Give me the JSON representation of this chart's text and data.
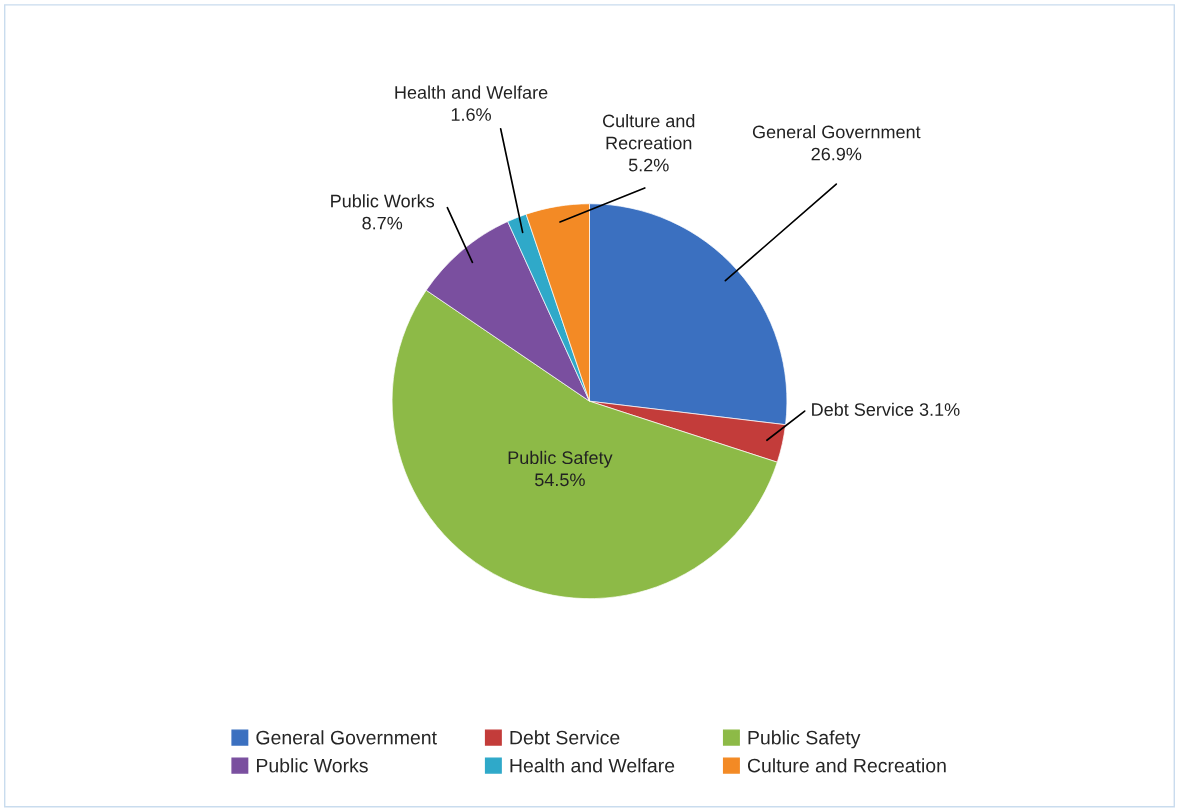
{
  "chart_data": {
    "type": "pie",
    "categories": [
      "General Government",
      "Debt Service",
      "Public Safety",
      "Public Works",
      "Health and Welfare",
      "Culture and Recreation"
    ],
    "values": [
      26.9,
      3.1,
      54.5,
      8.7,
      1.6,
      5.2
    ],
    "colors": [
      "#3b70c0",
      "#c33c3a",
      "#8dba47",
      "#7a4f9f",
      "#2fa9c9",
      "#f38a25"
    ],
    "value_labels": [
      "General Government\n26.9%",
      "Debt Service 3.1%",
      "Public Safety\n54.5%",
      "Public Works\n8.7%",
      "Health and Welfare\n1.6%",
      "Culture and\nRecreation\n5.2%"
    ],
    "legend": "bottom"
  }
}
